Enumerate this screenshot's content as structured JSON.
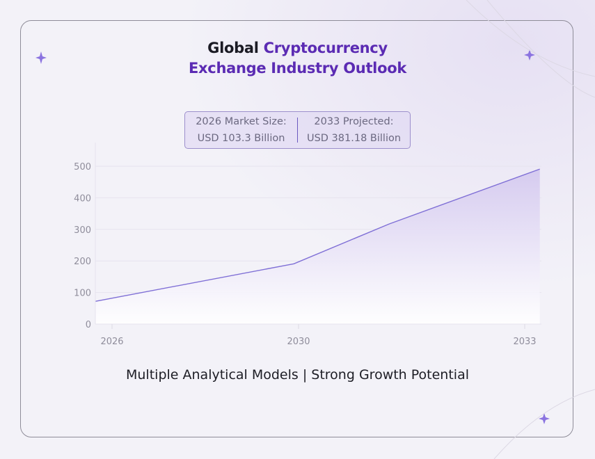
{
  "title": {
    "part1": "Global",
    "part2": "Cryptocurrency",
    "line2": "Exchange Industry Outlook"
  },
  "stats": [
    {
      "label": "2026 Market Size:",
      "value": "USD 103.3 Billion"
    },
    {
      "label": "2033 Projected:",
      "value": "USD 381.18 Billion"
    }
  ],
  "footer": "Multiple Analytical Models | Strong Growth Potential",
  "colors": {
    "accent": "#5b2bb3",
    "line": "#7f6fd6",
    "fill": "#d9d0f0"
  },
  "chart_data": {
    "type": "area",
    "title": "",
    "xlabel": "",
    "ylabel": "",
    "x_ticks": [
      "2026",
      "2030",
      "2033"
    ],
    "y_ticks": [
      0,
      100,
      200,
      300,
      400,
      500
    ],
    "ylim": [
      0,
      550
    ],
    "grid": "horizontal",
    "series": [
      {
        "points": [
          {
            "x": 2025.6,
            "y": 72
          },
          {
            "x": 2029.9,
            "y": 191
          },
          {
            "x": 2031.2,
            "y": 317
          },
          {
            "x": 2033.2,
            "y": 491
          }
        ]
      }
    ]
  }
}
